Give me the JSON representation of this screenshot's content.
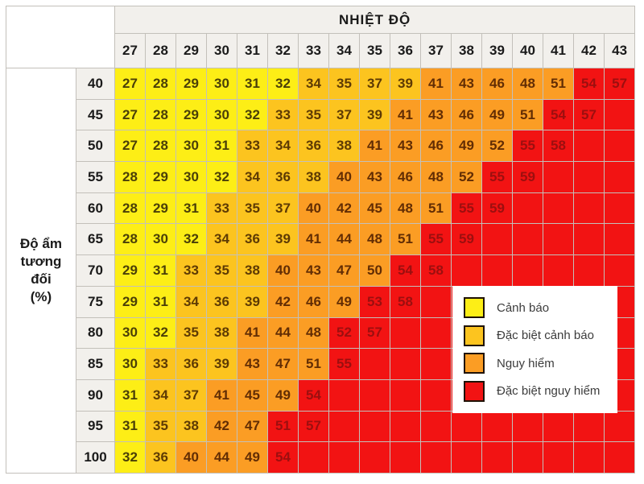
{
  "chart_data": {
    "type": "heatmap",
    "title": "NHIỆT ĐỘ",
    "ylabel_lines": [
      "Độ ẩm",
      "tương",
      "đối",
      "(%)"
    ],
    "ylabel_text": "Độ ẩm tương đối (%)",
    "x_ticks": [
      "27",
      "28",
      "29",
      "30",
      "31",
      "32",
      "33",
      "34",
      "35",
      "36",
      "37",
      "38",
      "39",
      "40",
      "41",
      "42",
      "43"
    ],
    "rows": [
      {
        "humidity": "40",
        "values": [
          "27",
          "28",
          "29",
          "30",
          "31",
          "32",
          "34",
          "35",
          "37",
          "39",
          "41",
          "43",
          "46",
          "48",
          "51",
          "54",
          "57"
        ],
        "levels": "YYYYYYGGGGOOOOORR"
      },
      {
        "humidity": "45",
        "values": [
          "27",
          "28",
          "29",
          "30",
          "32",
          "33",
          "35",
          "37",
          "39",
          "41",
          "43",
          "46",
          "49",
          "51",
          "54",
          "57",
          ""
        ],
        "levels": "YYYYYGGGGOOOOORRR"
      },
      {
        "humidity": "50",
        "values": [
          "27",
          "28",
          "30",
          "31",
          "33",
          "34",
          "36",
          "38",
          "41",
          "43",
          "46",
          "49",
          "52",
          "55",
          "58",
          "",
          ""
        ],
        "levels": "YYYYGGGGOOOOORRRR"
      },
      {
        "humidity": "55",
        "values": [
          "28",
          "29",
          "30",
          "32",
          "34",
          "36",
          "38",
          "40",
          "43",
          "46",
          "48",
          "52",
          "55",
          "59",
          "",
          "",
          ""
        ],
        "levels": "YYYYGGGOOOOORRRRR"
      },
      {
        "humidity": "60",
        "values": [
          "28",
          "29",
          "31",
          "33",
          "35",
          "37",
          "40",
          "42",
          "45",
          "48",
          "51",
          "55",
          "59",
          "",
          "",
          "",
          ""
        ],
        "levels": "YYYGGGOOOOORRRRRR"
      },
      {
        "humidity": "65",
        "values": [
          "28",
          "30",
          "32",
          "34",
          "36",
          "39",
          "41",
          "44",
          "48",
          "51",
          "55",
          "59",
          "",
          "",
          "",
          "",
          ""
        ],
        "levels": "YYYGGGOOOORRRRRRR"
      },
      {
        "humidity": "70",
        "values": [
          "29",
          "31",
          "33",
          "35",
          "38",
          "40",
          "43",
          "47",
          "50",
          "54",
          "58",
          "",
          "",
          "",
          "",
          "",
          ""
        ],
        "levels": "YYGGGOOOORRRRRRRR"
      },
      {
        "humidity": "75",
        "values": [
          "29",
          "31",
          "34",
          "36",
          "39",
          "42",
          "46",
          "49",
          "53",
          "58",
          "",
          "",
          "",
          "",
          "",
          "",
          ""
        ],
        "levels": "YYGGGOOORRRRRRRRR"
      },
      {
        "humidity": "80",
        "values": [
          "30",
          "32",
          "35",
          "38",
          "41",
          "44",
          "48",
          "52",
          "57",
          "",
          "",
          "",
          "",
          "",
          "",
          "",
          ""
        ],
        "levels": "YYGGOOORRRRRRRRRR"
      },
      {
        "humidity": "85",
        "values": [
          "30",
          "33",
          "36",
          "39",
          "43",
          "47",
          "51",
          "55",
          "",
          "",
          "",
          "",
          "",
          "",
          "",
          "",
          ""
        ],
        "levels": "YGGGOOORRRRRRRRRR"
      },
      {
        "humidity": "90",
        "values": [
          "31",
          "34",
          "37",
          "41",
          "45",
          "49",
          "54",
          "",
          "",
          "",
          "",
          "",
          "",
          "",
          "",
          "",
          ""
        ],
        "levels": "YGGOOORRRRRRRRRRR"
      },
      {
        "humidity": "95",
        "values": [
          "31",
          "35",
          "38",
          "42",
          "47",
          "51",
          "57",
          "",
          "",
          "",
          "",
          "",
          "",
          "",
          "",
          "",
          ""
        ],
        "levels": "YGGOORRRRRRRRRRRR"
      },
      {
        "humidity": "100",
        "values": [
          "32",
          "36",
          "40",
          "44",
          "49",
          "54",
          "",
          "",
          "",
          "",
          "",
          "",
          "",
          "",
          "",
          "",
          ""
        ],
        "levels": "YGOOORRRRRRRRRRRR"
      }
    ],
    "levels": {
      "Y": {
        "label": "Cảnh báo",
        "color": "#FDEE16",
        "text_color": "#4a3f08"
      },
      "G": {
        "label": "Đặc biệt cảnh báo",
        "color": "#FCC41F",
        "text_color": "#5d3a04"
      },
      "O": {
        "label": "Nguy hiểm",
        "color": "#FB9D24",
        "text_color": "#622d04"
      },
      "R": {
        "label": "Đặc biệt nguy hiểm",
        "color": "#F21313",
        "text_color": "#9c0f0f"
      }
    },
    "legend_order": [
      "Y",
      "G",
      "O",
      "R"
    ],
    "layout": {
      "header_bg": "#f2f0ec",
      "grid_line_color": "#c3c0ba",
      "legend_position": "over lower-right red region"
    }
  }
}
